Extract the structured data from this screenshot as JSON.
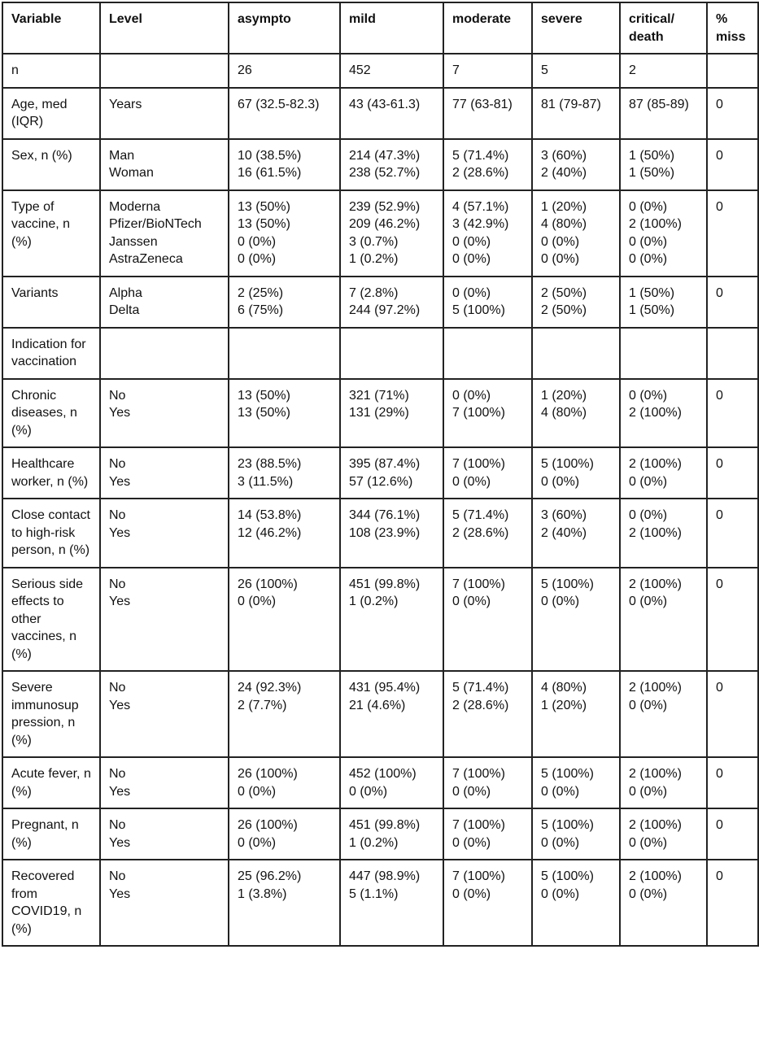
{
  "headers": [
    "Variable",
    "Level",
    "asympto",
    "mild",
    "moderate",
    "severe",
    "critical/ death",
    "% miss"
  ],
  "rows": [
    {
      "variable": "n",
      "levels": [],
      "asympto": [
        " 26"
      ],
      "mild": [
        "452"
      ],
      "moderate": [
        "7"
      ],
      "severe": [
        "5"
      ],
      "critical": [
        "2"
      ],
      "miss": ""
    },
    {
      "variable": "Age, med (IQR)",
      "levels": [
        "Years"
      ],
      "asympto": [
        "67 (32.5-82.3)"
      ],
      "mild": [
        "43 (43-61.3)"
      ],
      "moderate": [
        "77 (63-81)"
      ],
      "severe": [
        "81 (79-87)"
      ],
      "critical": [
        "87 (85-89)"
      ],
      "miss": "0"
    },
    {
      "variable": "Sex, n (%)",
      "levels": [
        "Man",
        "Woman"
      ],
      "asympto": [
        "10 (38.5%)",
        "16 (61.5%)"
      ],
      "mild": [
        "214 (47.3%)",
        "238 (52.7%)"
      ],
      "moderate": [
        "5 (71.4%)",
        "2 (28.6%)"
      ],
      "severe": [
        "3 (60%)",
        "2 (40%)"
      ],
      "critical": [
        "1 (50%)",
        "1 (50%)"
      ],
      "miss": "0"
    },
    {
      "variable": "Type of vaccine, n (%)",
      "levels": [
        "Moderna",
        "Pfizer/BioNTech",
        "Janssen",
        "AstraZeneca"
      ],
      "asympto": [
        "13 (50%)",
        "13 (50%)",
        "0 (0%)",
        "0 (0%)"
      ],
      "mild": [
        "239 (52.9%)",
        "209 (46.2%)",
        "3 (0.7%)",
        "1 (0.2%)"
      ],
      "moderate": [
        "4 (57.1%)",
        "3 (42.9%)",
        "0 (0%)",
        "0 (0%)"
      ],
      "severe": [
        "1 (20%)",
        "4 (80%)",
        "0 (0%)",
        "0 (0%)"
      ],
      "critical": [
        "0 (0%)",
        "2 (100%)",
        "0 (0%)",
        "0 (0%)"
      ],
      "miss": "0"
    },
    {
      "variable": "Variants",
      "levels": [
        "Alpha",
        "Delta"
      ],
      "asympto": [
        "2 (25%)",
        "6 (75%)"
      ],
      "mild": [
        "7 (2.8%)",
        "244 (97.2%)"
      ],
      "moderate": [
        "0 (0%)",
        "5 (100%)"
      ],
      "severe": [
        "2 (50%)",
        "2 (50%)"
      ],
      "critical": [
        "1 (50%)",
        "1 (50%)"
      ],
      "miss": "0"
    },
    {
      "variable": "Indication for vaccination",
      "levels": [],
      "asympto": [],
      "mild": [],
      "moderate": [],
      "severe": [],
      "critical": [],
      "miss": ""
    },
    {
      "variable": "Chronic diseases, n (%)",
      "levels": [
        "No",
        "Yes"
      ],
      "asympto": [
        "13 (50%)",
        "13 (50%)"
      ],
      "mild": [
        "321 (71%)",
        "131 (29%)"
      ],
      "moderate": [
        "0 (0%)",
        "7 (100%)"
      ],
      "severe": [
        "1 (20%)",
        "4 (80%)"
      ],
      "critical": [
        "0 (0%)",
        "2 (100%)"
      ],
      "miss": "0"
    },
    {
      "variable": "Healthcare worker, n (%)",
      "levels": [
        "No",
        "Yes"
      ],
      "asympto": [
        "23 (88.5%)",
        "3 (11.5%)"
      ],
      "mild": [
        "395 (87.4%)",
        "57 (12.6%)"
      ],
      "moderate": [
        "7 (100%)",
        "0 (0%)"
      ],
      "severe": [
        "5 (100%)",
        "0 (0%)"
      ],
      "critical": [
        "2 (100%)",
        "0 (0%)"
      ],
      "miss": "0"
    },
    {
      "variable": "Close contact to high-risk person, n (%)",
      "levels": [
        "No",
        "Yes"
      ],
      "asympto": [
        "14 (53.8%)",
        "12 (46.2%)"
      ],
      "mild": [
        "344 (76.1%)",
        "108 (23.9%)"
      ],
      "moderate": [
        "5 (71.4%)",
        "2 (28.6%)"
      ],
      "severe": [
        "3 (60%)",
        "2 (40%)"
      ],
      "critical": [
        "0 (0%)",
        "2 (100%)"
      ],
      "miss": "0"
    },
    {
      "variable": "Serious side effects to other vaccines, n (%)",
      "levels": [
        "No",
        "Yes"
      ],
      "asympto": [
        "26 (100%)",
        "0 (0%)"
      ],
      "mild": [
        "451 (99.8%)",
        "1 (0.2%)"
      ],
      "moderate": [
        "7 (100%)",
        "0 (0%)"
      ],
      "severe": [
        "5 (100%)",
        "0 (0%)"
      ],
      "critical": [
        "2 (100%)",
        "0 (0%)"
      ],
      "miss": "0"
    },
    {
      "variable": "Severe immunosup pression, n (%)",
      "levels": [
        "No",
        "Yes"
      ],
      "asympto": [
        "24 (92.3%)",
        "2 (7.7%)"
      ],
      "mild": [
        "431 (95.4%)",
        "21 (4.6%)"
      ],
      "moderate": [
        "5 (71.4%)",
        "2 (28.6%)"
      ],
      "severe": [
        "4 (80%)",
        "1 (20%)"
      ],
      "critical": [
        "2 (100%)",
        "0 (0%)"
      ],
      "miss": "0"
    },
    {
      "variable": "Acute fever, n (%)",
      "levels": [
        "No",
        "Yes"
      ],
      "asympto": [
        "26 (100%)",
        "0 (0%)"
      ],
      "mild": [
        "452 (100%)",
        "0 (0%)"
      ],
      "moderate": [
        "7 (100%)",
        "0 (0%)"
      ],
      "severe": [
        "5 (100%)",
        "0 (0%)"
      ],
      "critical": [
        "2 (100%)",
        "0 (0%)"
      ],
      "miss": "0"
    },
    {
      "variable": "Pregnant, n (%)",
      "levels": [
        "No",
        "Yes"
      ],
      "asympto": [
        "26 (100%)",
        "0 (0%)"
      ],
      "mild": [
        "451 (99.8%)",
        "1 (0.2%)"
      ],
      "moderate": [
        "7 (100%)",
        "0 (0%)"
      ],
      "severe": [
        "5 (100%)",
        "0 (0%)"
      ],
      "critical": [
        "2 (100%)",
        "0 (0%)"
      ],
      "miss": "0"
    },
    {
      "variable": "Recovered from COVID19, n (%)",
      "levels": [
        "No",
        "Yes"
      ],
      "asympto": [
        "25 (96.2%)",
        "1 (3.8%)"
      ],
      "mild": [
        "447 (98.9%)",
        "5 (1.1%)"
      ],
      "moderate": [
        "7 (100%)",
        "0 (0%)"
      ],
      "severe": [
        "5 (100%)",
        "0 (0%)"
      ],
      "critical": [
        "2 (100%)",
        "0 (0%)"
      ],
      "miss": "0"
    }
  ]
}
